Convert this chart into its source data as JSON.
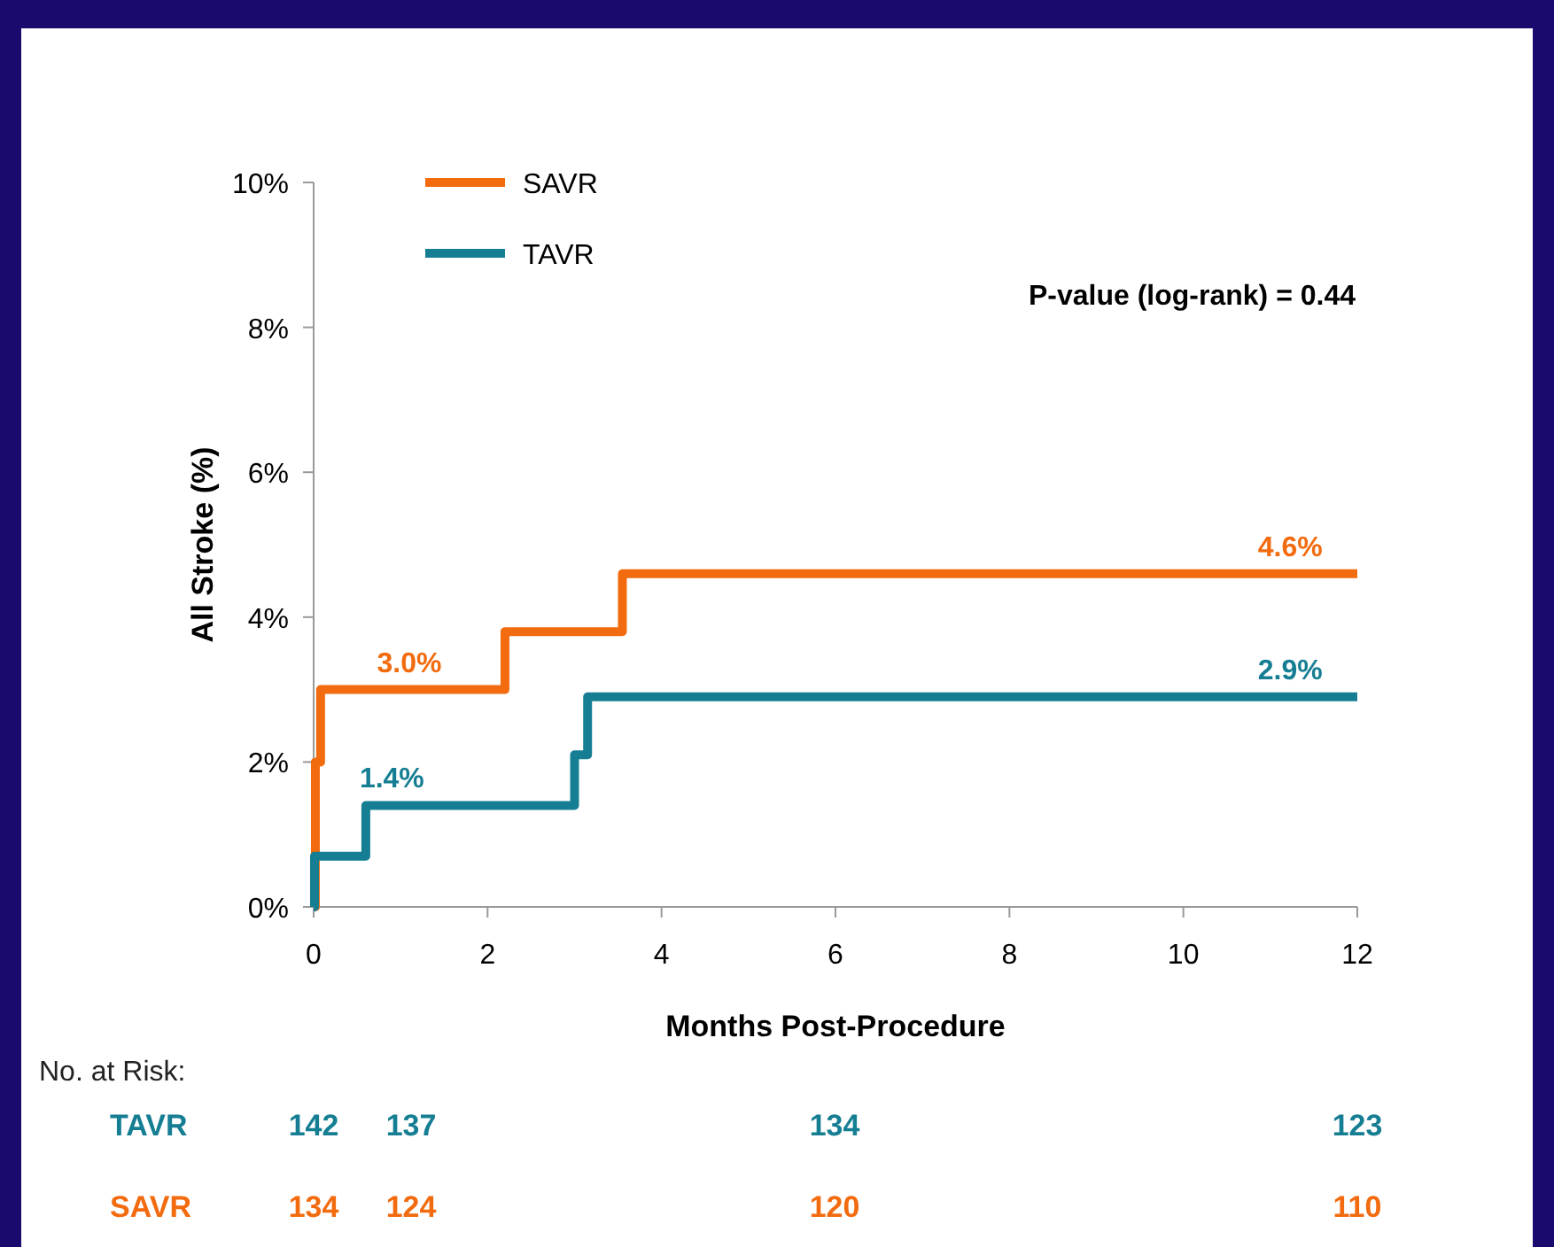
{
  "chart_data": {
    "type": "step",
    "xlabel": "Months Post-Procedure",
    "ylabel": "All Stroke (%)",
    "xlim": [
      0,
      12
    ],
    "xticks": [
      0,
      2,
      4,
      6,
      8,
      10,
      12
    ],
    "ylim": [
      0,
      10
    ],
    "yticks": [
      {
        "value": 0,
        "label": "0%"
      },
      {
        "value": 2,
        "label": "2%"
      },
      {
        "value": 4,
        "label": "4%"
      },
      {
        "value": 6,
        "label": "6%"
      },
      {
        "value": 8,
        "label": "8%"
      },
      {
        "value": 10,
        "label": "10%"
      }
    ],
    "series": [
      {
        "name": "SAVR",
        "color": "#f26b0f",
        "x": [
          0,
          0.02,
          0.08,
          2.2,
          3.55,
          12
        ],
        "values": [
          0,
          2.0,
          3.0,
          3.8,
          4.6,
          4.6
        ]
      },
      {
        "name": "TAVR",
        "color": "#167e93",
        "x": [
          0,
          0.01,
          0.6,
          3.0,
          3.15,
          12
        ],
        "values": [
          0,
          0.7,
          1.4,
          2.1,
          2.9,
          2.9
        ]
      }
    ],
    "legend": "top left",
    "grid": false,
    "annotations": [
      {
        "text": "3.0%",
        "x": 1.1,
        "y": 3.0
      },
      {
        "text": "1.4%",
        "x": 0.9,
        "y": 1.4
      },
      {
        "text": "4.6%",
        "x": 11.6,
        "y": 4.6
      },
      {
        "text": "2.9%",
        "x": 11.6,
        "y": 2.9
      },
      "P-value (log-rank) = 0.44",
      "No. at Risk:",
      "TAVR",
      "142",
      "137",
      "134",
      "123",
      "SAVR",
      "134",
      "124",
      "120",
      "110"
    ]
  }
}
